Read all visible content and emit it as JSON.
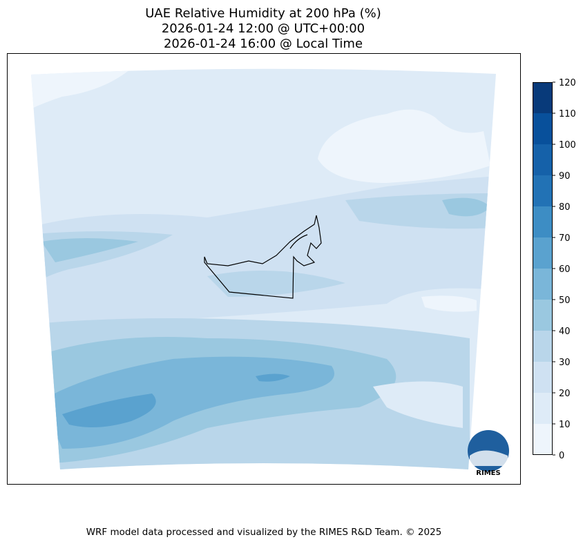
{
  "title_lines": [
    "UAE Relative Humidity at 200 hPa (%)",
    "2026-01-24 12:00 @ UTC+00:00",
    "2026-01-24 16:00 @ Local Time"
  ],
  "colorbar": {
    "type": "colorbar",
    "ticks": [
      0,
      10,
      20,
      30,
      40,
      50,
      60,
      70,
      80,
      90,
      100,
      110,
      120
    ],
    "lim": [
      0,
      120
    ],
    "colors": [
      "#eef5fc",
      "#deebf7",
      "#cfe1f2",
      "#b9d6ea",
      "#9ac8e0",
      "#7ab6d9",
      "#5aa2cf",
      "#3d8dc4",
      "#2272b5",
      "#1561a9",
      "#08509b",
      "#083a7a"
    ]
  },
  "logo": "RIMES",
  "footer": "WRF model data processed and visualized by the RIMES R&D Team. © 2025"
}
